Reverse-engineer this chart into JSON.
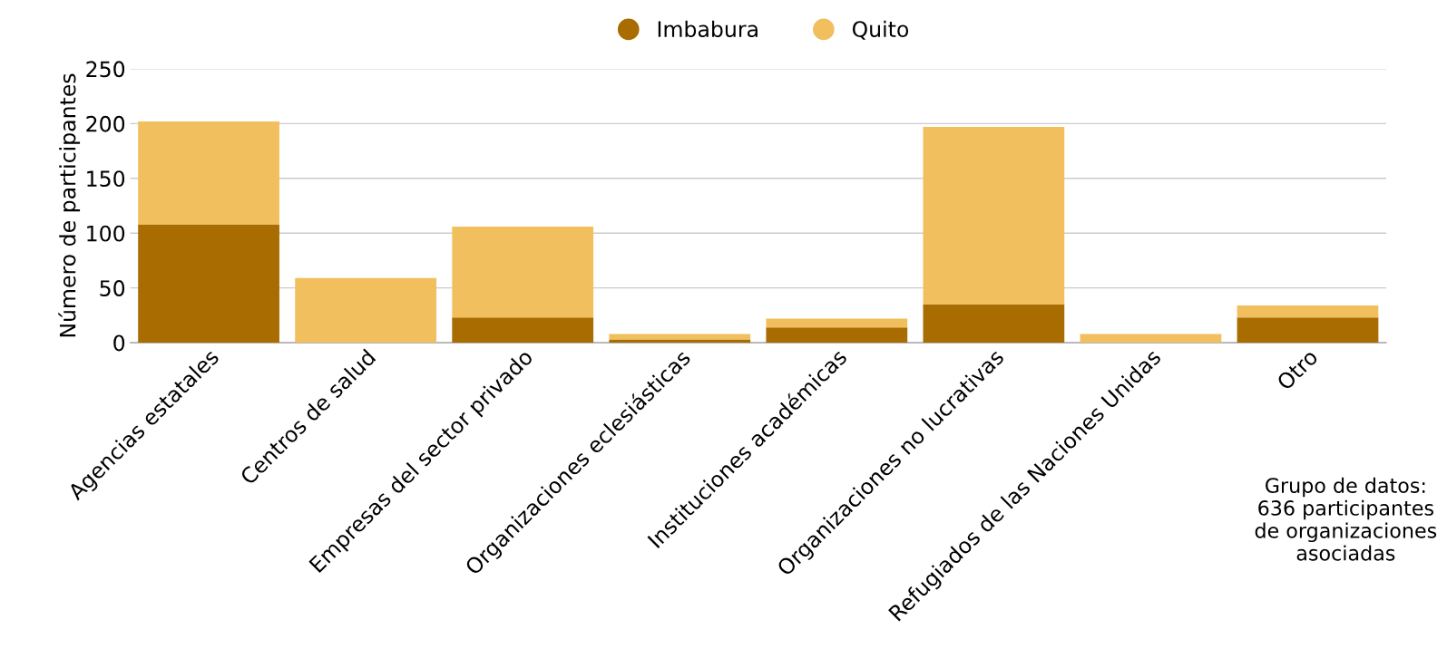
{
  "chart_data": {
    "type": "bar",
    "stacked": true,
    "ylabel": "Número de participantes",
    "categories": [
      "Agencias estatales",
      "Centros de salud",
      "Empresas del sector privado",
      "Organizaciones eclesiásticas",
      "Instituciones académicas",
      "Organizaciones no lucrativas",
      "Refugiados de las Naciones Unidas",
      "Otro"
    ],
    "series": [
      {
        "name": "Imbabura",
        "color": "#a86c00",
        "values": [
          108,
          0,
          23,
          3,
          14,
          35,
          0,
          23
        ]
      },
      {
        "name": "Quito",
        "color": "#f2bf5e",
        "values": [
          94,
          59,
          83,
          5,
          8,
          162,
          8,
          11
        ]
      }
    ],
    "ylim": [
      0,
      250
    ],
    "yticks": [
      0,
      50,
      100,
      150,
      200,
      250
    ],
    "grid": "y",
    "legend": "top",
    "annotations": [
      "Grupo de datos:\n636 participantes\nde organizaciones\nasociadas"
    ]
  }
}
